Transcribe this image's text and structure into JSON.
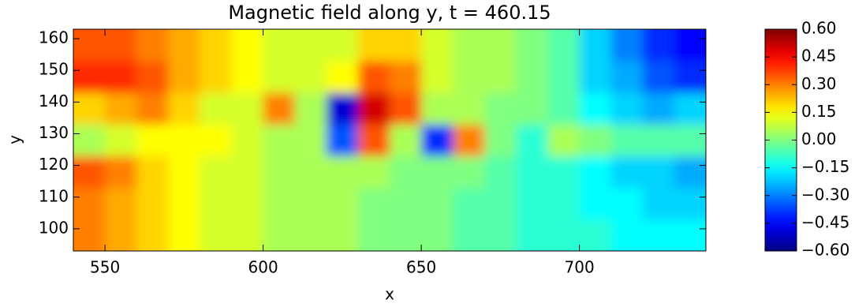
{
  "chart_data": {
    "type": "heatmap",
    "title": "Magnetic field along y, t = 460.15",
    "x_label": "x",
    "y_label": "y",
    "colormap": "jet",
    "x": [
      545,
      555,
      565,
      575,
      585,
      595,
      605,
      615,
      625,
      635,
      645,
      655,
      665,
      675,
      685,
      695,
      705,
      715,
      725,
      735
    ],
    "y": [
      98,
      108,
      118,
      128,
      138,
      148,
      158
    ],
    "z": [
      [
        0.3,
        0.25,
        0.2,
        0.15,
        0.1,
        0.1,
        0.05,
        0.05,
        0.05,
        0.0,
        0.0,
        0.0,
        -0.05,
        -0.05,
        -0.1,
        -0.1,
        -0.1,
        -0.15,
        -0.15,
        -0.15
      ],
      [
        0.3,
        0.25,
        0.2,
        0.15,
        0.1,
        0.1,
        0.05,
        0.05,
        0.05,
        0.0,
        0.0,
        0.0,
        -0.05,
        -0.05,
        -0.1,
        -0.1,
        -0.15,
        -0.15,
        -0.2,
        -0.2
      ],
      [
        0.35,
        0.3,
        0.2,
        0.15,
        0.1,
        0.1,
        0.05,
        0.05,
        0.05,
        0.05,
        0.0,
        0.0,
        0.0,
        -0.05,
        -0.1,
        -0.1,
        -0.15,
        -0.2,
        -0.2,
        -0.25
      ],
      [
        0.05,
        0.1,
        0.15,
        0.15,
        0.15,
        0.1,
        0.05,
        0.05,
        -0.35,
        0.35,
        0.05,
        -0.4,
        0.3,
        0.0,
        -0.1,
        0.05,
        0.0,
        -0.05,
        -0.05,
        -0.05
      ],
      [
        0.2,
        0.25,
        0.3,
        0.2,
        0.1,
        0.1,
        0.3,
        0.05,
        -0.5,
        0.5,
        0.35,
        0.05,
        0.05,
        0.0,
        0.0,
        -0.05,
        -0.15,
        -0.2,
        -0.25,
        -0.2
      ],
      [
        0.4,
        0.4,
        0.35,
        0.25,
        0.2,
        0.15,
        0.1,
        0.1,
        0.15,
        0.35,
        0.3,
        0.1,
        0.05,
        0.05,
        0.0,
        -0.05,
        -0.2,
        -0.25,
        -0.35,
        -0.4
      ],
      [
        0.35,
        0.35,
        0.3,
        0.25,
        0.2,
        0.15,
        0.1,
        0.1,
        0.1,
        0.2,
        0.2,
        0.1,
        0.05,
        0.05,
        0.0,
        -0.05,
        -0.2,
        -0.3,
        -0.4,
        -0.45
      ]
    ],
    "xlim": [
      540,
      740
    ],
    "ylim": [
      93,
      163
    ],
    "xticks": [
      550,
      600,
      650,
      700
    ],
    "yticks": [
      100,
      110,
      120,
      130,
      140,
      150,
      160
    ],
    "clim": [
      -0.6,
      0.6
    ],
    "cticks": [
      {
        "value": 0.6,
        "label": "0.60"
      },
      {
        "value": 0.45,
        "label": "0.45"
      },
      {
        "value": 0.3,
        "label": "0.30"
      },
      {
        "value": 0.15,
        "label": "0.15"
      },
      {
        "value": 0,
        "label": "0.00"
      },
      {
        "value": -0.15,
        "label": "−0.15"
      },
      {
        "value": -0.3,
        "label": "−0.30"
      },
      {
        "value": -0.45,
        "label": "−0.45"
      },
      {
        "value": -0.6,
        "label": "−0.60"
      }
    ]
  }
}
